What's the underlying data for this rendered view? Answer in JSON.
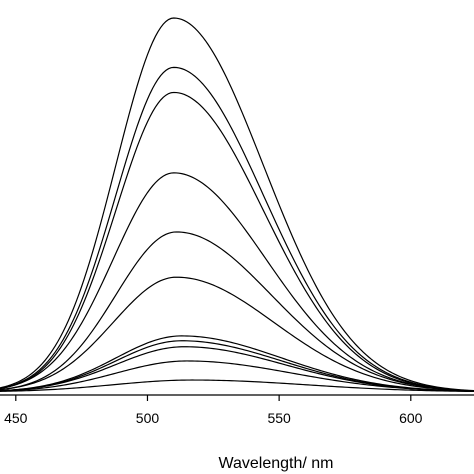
{
  "chart_data": {
    "type": "line",
    "title": "",
    "xlabel": "Wavelength/ nm",
    "ylabel": "",
    "xlim": [
      444,
      624
    ],
    "ylim": [
      0,
      1.0
    ],
    "x_ticks": [
      450,
      500,
      550,
      600
    ],
    "x_tick_labels": [
      "450",
      "500",
      "550",
      "600"
    ],
    "y_ticks_visible": false,
    "grid": false,
    "legend": "none",
    "line_color": "#000000",
    "series": [
      {
        "peak_nm": 510,
        "peak": 1.0,
        "sigma_left": 22,
        "sigma_right": 34
      },
      {
        "peak_nm": 510,
        "peak": 0.868,
        "sigma_left": 22,
        "sigma_right": 34
      },
      {
        "peak_nm": 510,
        "peak": 0.801,
        "sigma_left": 22,
        "sigma_right": 34
      },
      {
        "peak_nm": 510,
        "peak": 0.586,
        "sigma_left": 23,
        "sigma_right": 35
      },
      {
        "peak_nm": 511,
        "peak": 0.428,
        "sigma_left": 23,
        "sigma_right": 36
      },
      {
        "peak_nm": 511,
        "peak": 0.307,
        "sigma_left": 24,
        "sigma_right": 37
      },
      {
        "peak_nm": 513,
        "peak": 0.15,
        "sigma_left": 25,
        "sigma_right": 38
      },
      {
        "peak_nm": 513,
        "peak": 0.137,
        "sigma_left": 25,
        "sigma_right": 38
      },
      {
        "peak_nm": 514,
        "peak": 0.121,
        "sigma_left": 26,
        "sigma_right": 38
      },
      {
        "peak_nm": 515,
        "peak": 0.083,
        "sigma_left": 27,
        "sigma_right": 40
      },
      {
        "peak_nm": 517,
        "peak": 0.032,
        "sigma_left": 30,
        "sigma_right": 43
      }
    ]
  }
}
